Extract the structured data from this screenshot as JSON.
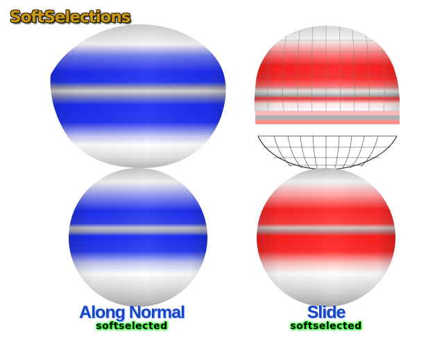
{
  "title": "SoftSelections",
  "panels": {
    "left": {
      "caption": "Along Normal",
      "sub": "softselected"
    },
    "right": {
      "caption": "Slide",
      "sub": "softselected"
    }
  },
  "colors": {
    "blue": "#1a2ff0",
    "red": "#ff1f1f",
    "gray": "#a8a8a8",
    "white": "#ffffff",
    "title": "#c99a16",
    "caption": "#1747c8",
    "glow": "#29ff2a"
  }
}
